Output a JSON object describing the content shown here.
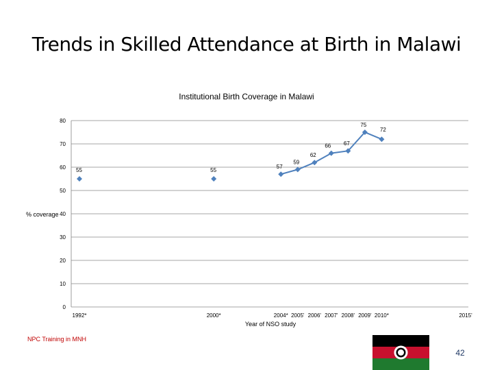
{
  "slide": {
    "title": "Trends in Skilled Attendance at Birth in Malawi",
    "footer": "NPC Training in MNH",
    "page_number": "42"
  },
  "colors": {
    "series": "#4f81bd",
    "gridline": "#868686",
    "axis": "#868686",
    "footer_text": "#c00000",
    "flag_black": "#000000",
    "flag_red": "#c8102e",
    "flag_green": "#1f7a2f"
  },
  "icons": {
    "flag": "malawi-flag-icon"
  },
  "chart_data": {
    "type": "line",
    "title": "Institutional Birth Coverage in Malawi",
    "xlabel": "Year of NSO study",
    "ylabel": "% coverage",
    "ylim": [
      0,
      80
    ],
    "yticks": [
      0,
      10,
      20,
      30,
      40,
      50,
      60,
      70,
      80
    ],
    "grid": "horizontal",
    "xlim": [
      1992,
      2015
    ],
    "tick_labels": [
      {
        "x": 1992,
        "label": "1992*"
      },
      {
        "x": 2000,
        "label": "2000*"
      },
      {
        "x": 2004,
        "label": "2004*"
      },
      {
        "x": 2005,
        "label": "2005'"
      },
      {
        "x": 2006,
        "label": "2006'"
      },
      {
        "x": 2007,
        "label": "2007'"
      },
      {
        "x": 2008,
        "label": "2008'"
      },
      {
        "x": 2009,
        "label": "2009'"
      },
      {
        "x": 2010,
        "label": "2010*"
      },
      {
        "x": 2015,
        "label": "2015'"
      }
    ],
    "points": [
      {
        "x": 1992,
        "y": 55,
        "label": "55",
        "connected": false
      },
      {
        "x": 2000,
        "y": 55,
        "label": "55",
        "connected": false
      },
      {
        "x": 2004,
        "y": 57,
        "label": "57",
        "connected": true
      },
      {
        "x": 2005,
        "y": 59,
        "label": "59",
        "connected": true
      },
      {
        "x": 2006,
        "y": 62,
        "label": "62",
        "connected": true
      },
      {
        "x": 2007,
        "y": 66,
        "label": "66",
        "connected": true
      },
      {
        "x": 2008,
        "y": 67,
        "label": "67",
        "connected": true
      },
      {
        "x": 2009,
        "y": 75,
        "label": "75",
        "connected": true
      },
      {
        "x": 2010,
        "y": 72,
        "label": "72",
        "connected": true
      }
    ]
  }
}
